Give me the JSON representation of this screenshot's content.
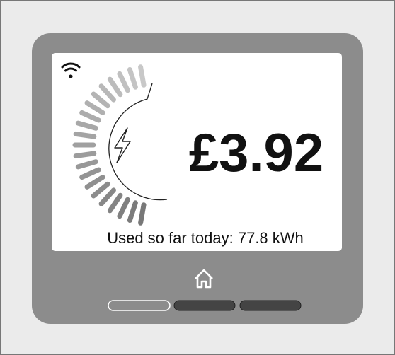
{
  "screen": {
    "amount": "£3.92",
    "usage_label": "Used so far today: 77.8 kWh"
  }
}
